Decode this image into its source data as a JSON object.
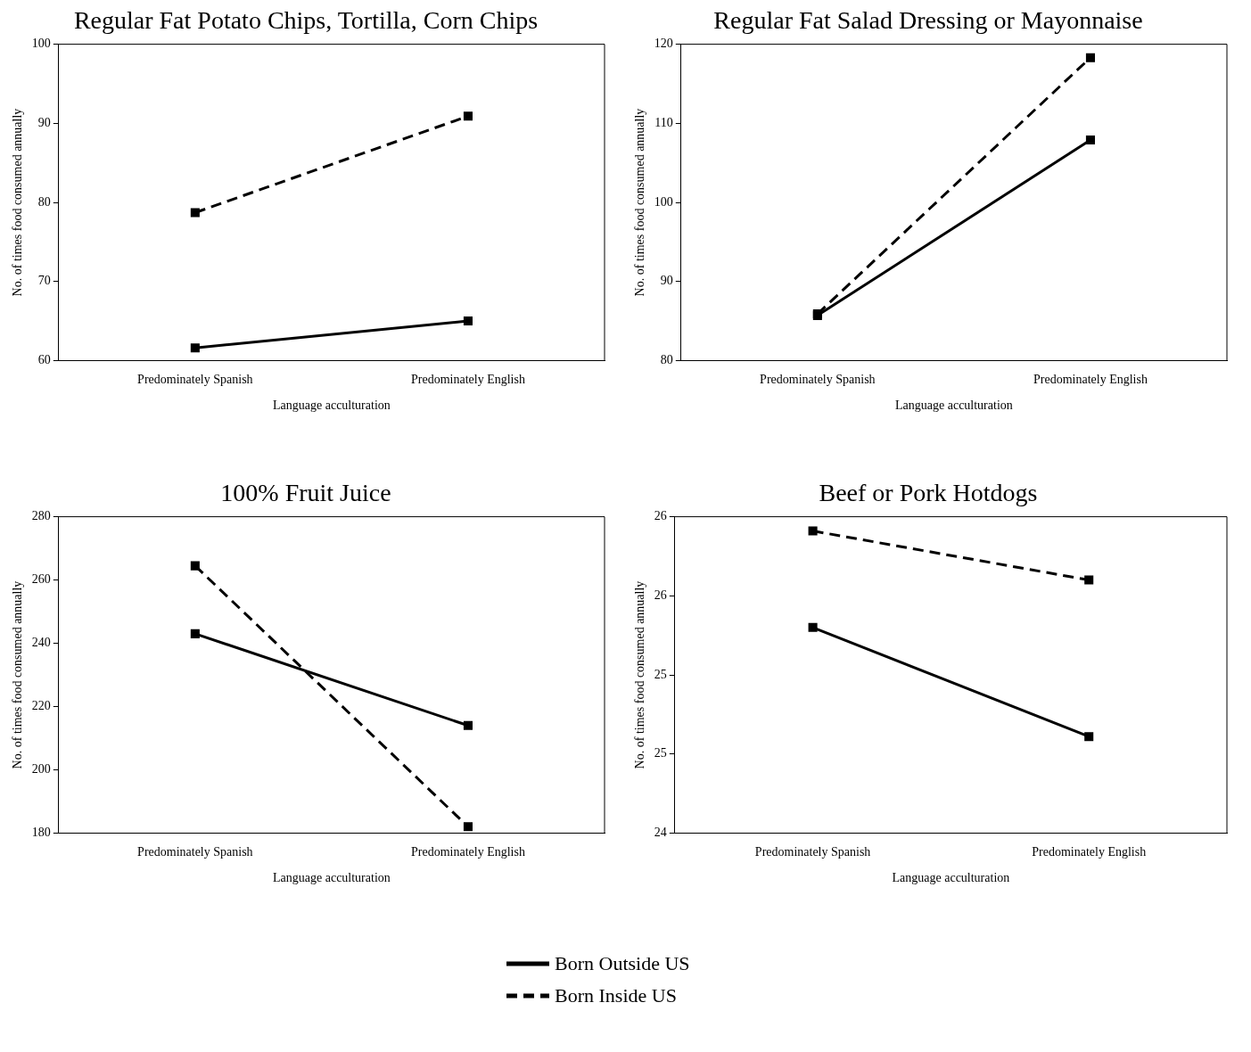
{
  "chart_data": [
    {
      "type": "line",
      "title": "Regular Fat Potato Chips, Tortilla, Corn Chips",
      "xlabel": "Language acculturation",
      "ylabel": "No. of times food consumed annually",
      "categories": [
        "Predominately Spanish",
        "Predominately English"
      ],
      "ylim": [
        60,
        100
      ],
      "yticks": [
        60,
        70,
        80,
        90,
        100
      ],
      "marker": "square",
      "grid": false,
      "legend": "bottom",
      "series": [
        {
          "name": "Born Outside US",
          "color": "#000000",
          "line_style": "solid",
          "values": [
            61.6,
            65.0
          ]
        },
        {
          "name": "Born Inside US",
          "color": "#000000",
          "line_style": "dashed",
          "values": [
            78.7,
            90.9
          ]
        }
      ]
    },
    {
      "type": "line",
      "title": "Regular Fat Salad Dressing or Mayonnaise",
      "xlabel": "Language acculturation",
      "ylabel": "No. of times food consumed annually",
      "categories": [
        "Predominately Spanish",
        "Predominately English"
      ],
      "ylim": [
        80,
        120
      ],
      "yticks": [
        80,
        90,
        100,
        110,
        120
      ],
      "marker": "square",
      "grid": false,
      "series": [
        {
          "color": "#000000",
          "line_style": "solid",
          "values": [
            85.7,
            107.9
          ]
        },
        {
          "color": "#000000",
          "line_style": "dashed",
          "values": [
            85.9,
            118.3
          ]
        }
      ]
    },
    {
      "type": "line",
      "title": "100% Fruit Juice",
      "xlabel": "Language acculturation",
      "ylabel": "No. of times food consumed annually",
      "categories": [
        "Predominately Spanish",
        "Predominately English"
      ],
      "ylim": [
        180,
        280
      ],
      "yticks": [
        180,
        200,
        220,
        240,
        260,
        280
      ],
      "marker": "square",
      "grid": false,
      "series": [
        {
          "color": "#000000",
          "line_style": "solid",
          "values": [
            243,
            214
          ]
        },
        {
          "color": "#000000",
          "line_style": "dashed",
          "values": [
            264.5,
            182
          ]
        }
      ]
    },
    {
      "type": "line",
      "title": "Beef or Pork Hotdogs",
      "xlabel": "Language acculturation",
      "ylabel": "No. of times food consumed annually",
      "categories": [
        "Predominately Spanish",
        "Predominately English"
      ],
      "ylim": [
        24,
        26
      ],
      "yticks": [
        24,
        {
          "value": 24.5,
          "label": "25"
        },
        25,
        {
          "value": 25.5,
          "label": "26"
        },
        26
      ],
      "marker": "square",
      "grid": false,
      "series": [
        {
          "color": "#000000",
          "line_style": "solid",
          "values": [
            25.3,
            24.61
          ]
        },
        {
          "color": "#000000",
          "line_style": "dashed",
          "values": [
            25.91,
            25.6
          ]
        }
      ]
    }
  ]
}
